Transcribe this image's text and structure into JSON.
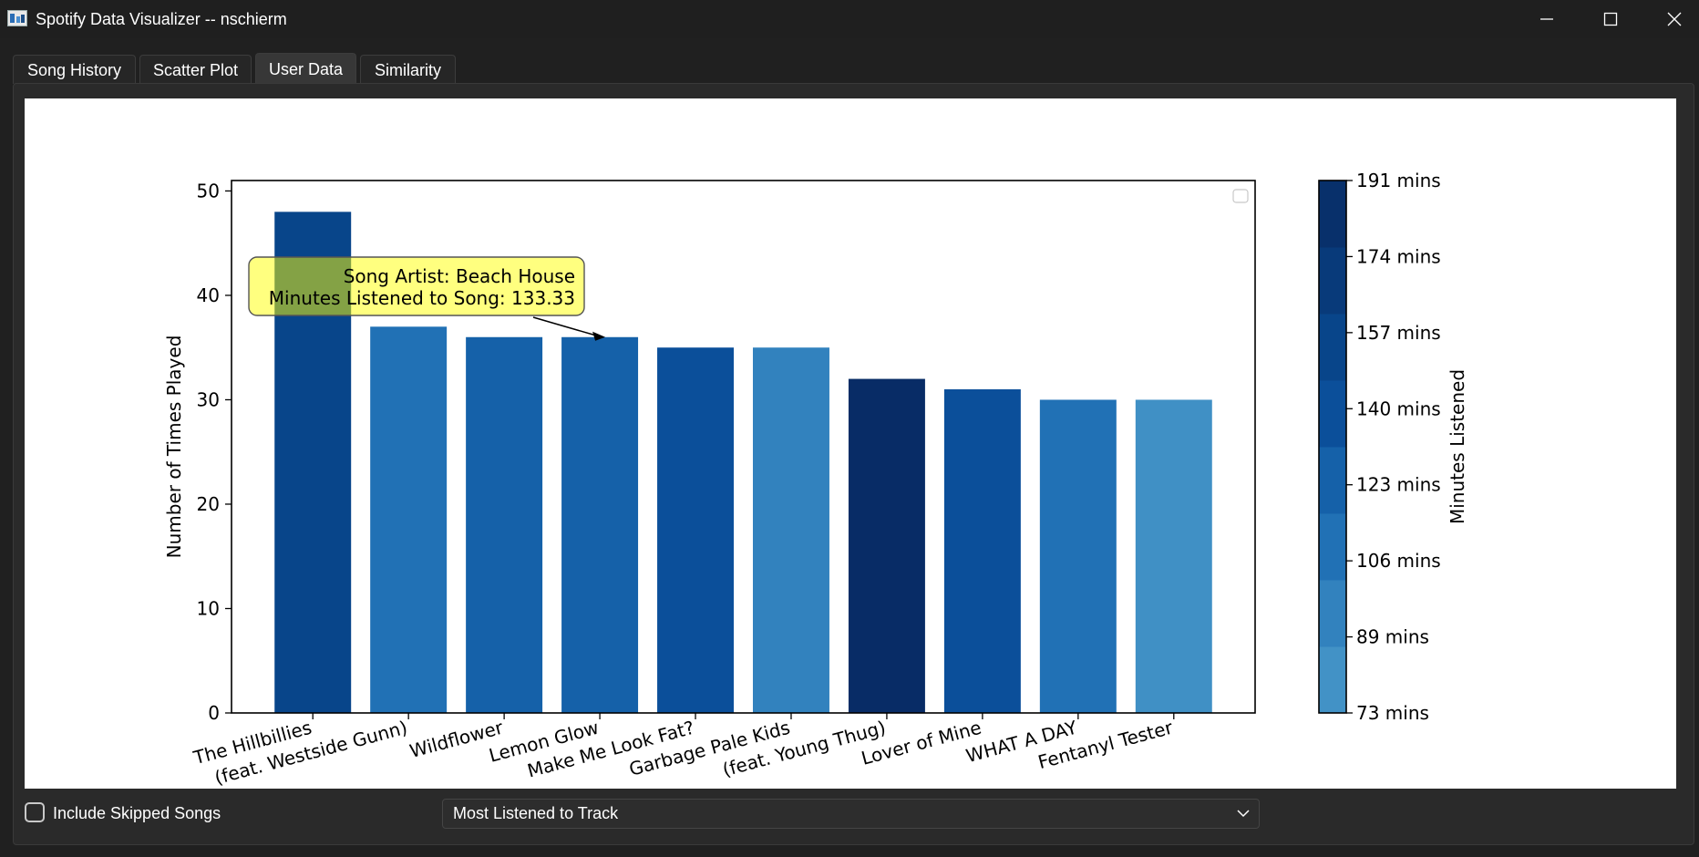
{
  "window": {
    "title": "Spotify Data Visualizer -- nschierm"
  },
  "tabs": [
    {
      "label": "Song History",
      "active": false
    },
    {
      "label": "Scatter Plot",
      "active": false
    },
    {
      "label": "User Data",
      "active": true
    },
    {
      "label": "Similarity",
      "active": false
    }
  ],
  "controls": {
    "skipped_label": "Include Skipped Songs",
    "skipped_checked": false,
    "dropdown_value": "Most Listened to Track"
  },
  "tooltip": {
    "line1": "Song Artist: Beach House",
    "line2": "Minutes Listened to Song: 133.33"
  },
  "chart_data": {
    "type": "bar",
    "categories": [
      "The Hillbillies",
      "(feat. Westside Gunn)",
      "Wildflower",
      "Lemon Glow",
      "Make Me Look Fat?",
      "Garbage Pale Kids",
      "(feat. Young Thug)",
      "Lover of Mine",
      "WHAT A DAY",
      "Fentanyl Tester"
    ],
    "values": [
      48,
      37,
      36,
      36,
      35,
      35,
      32,
      31,
      30,
      30
    ],
    "colors": [
      "#08458a",
      "#2171b5",
      "#1561a9",
      "#1561a9",
      "#0b4f9a",
      "#3282be",
      "#082c66",
      "#0b4f9a",
      "#2171b5",
      "#4090c5"
    ],
    "ylabel": "Number of Times Played",
    "xlabel": "",
    "ylim": [
      0,
      51
    ],
    "yticks": [
      0,
      10,
      20,
      30,
      40,
      50
    ],
    "annotated_index": 3,
    "colorbar": {
      "label": "Minutes Listened",
      "tick_labels": [
        "73 mins",
        "89 mins",
        "106 mins",
        "123 mins",
        "140 mins",
        "157 mins",
        "174 mins",
        "191 mins"
      ],
      "colors_bottom_to_top": [
        "#4292c6",
        "#3282be",
        "#2171b5",
        "#1561a9",
        "#0b4f9a",
        "#08458a",
        "#083a7a",
        "#08306b"
      ]
    }
  }
}
